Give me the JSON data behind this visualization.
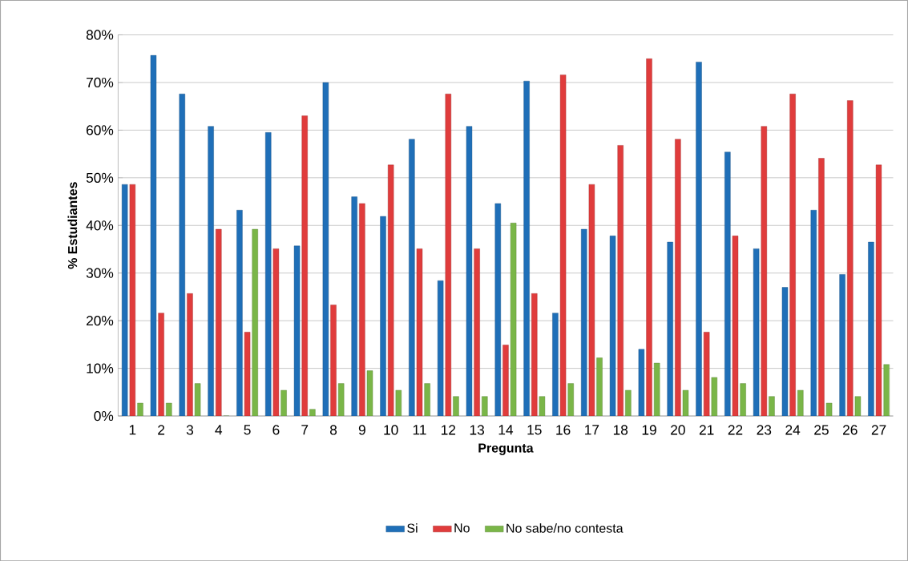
{
  "chart_data": {
    "type": "bar",
    "xlabel": "Pregunta",
    "ylabel": "% Estudiantes",
    "categories": [
      "1",
      "2",
      "3",
      "4",
      "5",
      "6",
      "7",
      "8",
      "9",
      "10",
      "11",
      "12",
      "13",
      "14",
      "15",
      "16",
      "17",
      "18",
      "19",
      "20",
      "21",
      "22",
      "23",
      "24",
      "25",
      "26",
      "27"
    ],
    "series": [
      {
        "name": "Si",
        "color": "#1f6fb8",
        "values": [
          48.6,
          75.7,
          67.6,
          60.8,
          43.2,
          59.5,
          35.7,
          70.0,
          46.0,
          41.9,
          58.1,
          28.4,
          60.8,
          44.6,
          70.3,
          21.6,
          39.2,
          37.8,
          14.0,
          36.5,
          74.3,
          55.4,
          35.1,
          27.0,
          43.2,
          29.7,
          36.5
        ]
      },
      {
        "name": "No",
        "color": "#e03c3c",
        "values": [
          48.6,
          21.6,
          25.7,
          39.2,
          17.6,
          35.1,
          63.0,
          23.3,
          44.6,
          52.7,
          35.1,
          67.6,
          35.1,
          14.9,
          25.7,
          71.6,
          48.6,
          56.8,
          75.0,
          58.1,
          17.6,
          37.8,
          60.8,
          67.6,
          54.1,
          66.2,
          52.7
        ]
      },
      {
        "name": "No sabe/no contesta",
        "color": "#7ab648",
        "values": [
          2.7,
          2.7,
          6.8,
          0,
          39.2,
          5.4,
          1.4,
          6.8,
          9.5,
          5.4,
          6.8,
          4.1,
          4.1,
          40.5,
          4.1,
          6.8,
          12.2,
          5.4,
          11.1,
          5.4,
          8.1,
          6.8,
          4.1,
          5.4,
          2.7,
          4.1,
          10.8
        ]
      }
    ],
    "ylim": [
      0,
      80
    ],
    "yticks": [
      {
        "value": 0,
        "label": "0%"
      },
      {
        "value": 10,
        "label": "10%"
      },
      {
        "value": 20,
        "label": "20%"
      },
      {
        "value": 30,
        "label": "30%"
      },
      {
        "value": 40,
        "label": "40%"
      },
      {
        "value": 50,
        "label": "50%"
      },
      {
        "value": 60,
        "label": "60%"
      },
      {
        "value": 70,
        "label": "70%"
      },
      {
        "value": 80,
        "label": "80%"
      }
    ],
    "grid": "y",
    "legend": "bottom"
  }
}
